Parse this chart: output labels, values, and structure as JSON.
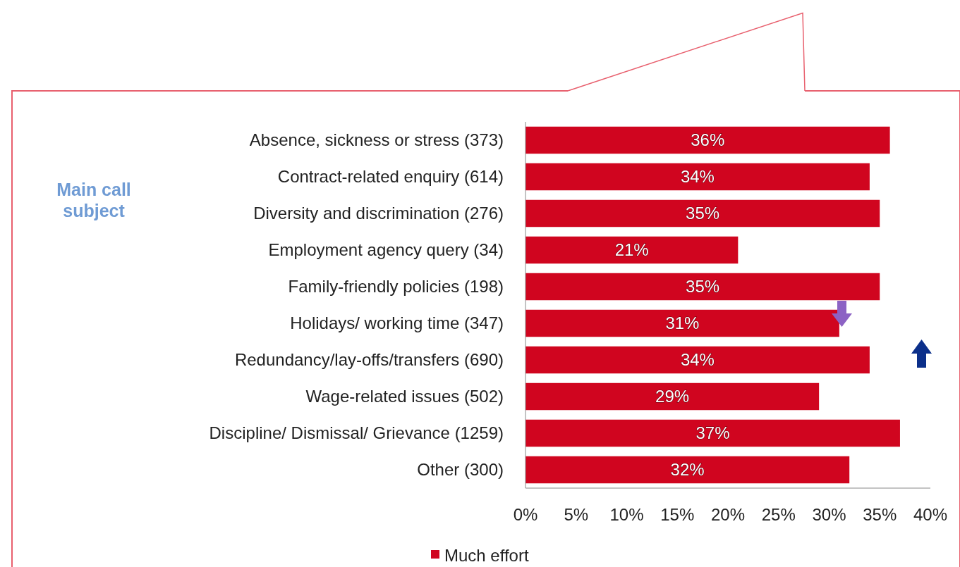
{
  "chart_data": {
    "type": "bar",
    "orientation": "horizontal",
    "ylabel": "Main call subject",
    "categories": [
      "Absence, sickness or stress (373)",
      "Contract-related enquiry (614)",
      "Diversity and discrimination (276)",
      "Employment agency query (34)",
      "Family-friendly policies (198)",
      "Holidays/ working time (347)",
      "Redundancy/lay-offs/transfers (690)",
      "Wage-related issues (502)",
      "Discipline/ Dismissal/ Grievance (1259)",
      "Other (300)"
    ],
    "series": [
      {
        "name": "Much effort",
        "color": "#d0051f",
        "values": [
          36,
          34,
          35,
          21,
          35,
          31,
          34,
          29,
          37,
          32
        ]
      }
    ],
    "value_labels": [
      "36%",
      "34%",
      "35%",
      "21%",
      "35%",
      "31%",
      "34%",
      "29%",
      "37%",
      "32%"
    ],
    "xlim": [
      0,
      40
    ],
    "xticks": [
      {
        "value": 0,
        "label": "0%"
      },
      {
        "value": 5,
        "label": "5%"
      },
      {
        "value": 10,
        "label": "10%"
      },
      {
        "value": 15,
        "label": "15%"
      },
      {
        "value": 20,
        "label": "20%"
      },
      {
        "value": 25,
        "label": "25%"
      },
      {
        "value": 30,
        "label": "30%"
      },
      {
        "value": 35,
        "label": "35%"
      },
      {
        "value": 40,
        "label": "40%"
      }
    ],
    "legend": "bottom"
  }
}
